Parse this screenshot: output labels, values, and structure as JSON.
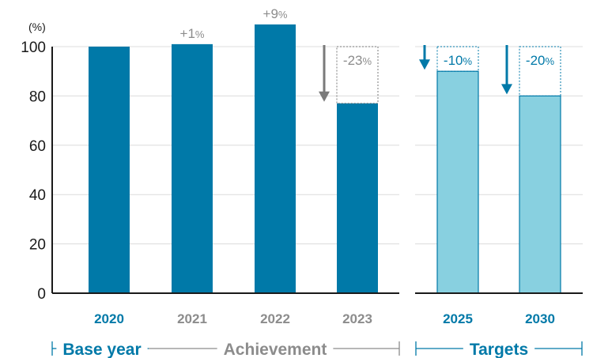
{
  "chart_data": {
    "type": "bar",
    "unit_label": "(%)",
    "y_ticks": [
      "0",
      "20",
      "40",
      "60",
      "80",
      "100"
    ],
    "ylim": [
      0,
      100
    ],
    "grid": true,
    "categories": [
      "2020",
      "2021",
      "2022",
      "2023",
      "2025",
      "2030"
    ],
    "values": [
      100,
      101,
      109,
      77,
      90,
      80
    ],
    "annotations": [
      {
        "category": "2021",
        "text": "+1",
        "unit": "%"
      },
      {
        "category": "2022",
        "text": "+9",
        "unit": "%"
      },
      {
        "category": "2023",
        "text": "-23",
        "unit": "%"
      },
      {
        "category": "2025",
        "text": "-10",
        "unit": "%"
      },
      {
        "category": "2030",
        "text": "-20",
        "unit": "%"
      }
    ],
    "groups": [
      {
        "label": "Base year",
        "categories": [
          "2020"
        ]
      },
      {
        "label": "Achievement",
        "categories": [
          "2021",
          "2022",
          "2023"
        ]
      },
      {
        "label": "Targets",
        "categories": [
          "2025",
          "2030"
        ]
      }
    ]
  },
  "colors": {
    "achievement_bar": "#0079a8",
    "target_bar": "#88d0e0",
    "label_blue": "#0079a8",
    "label_gray": "#8c8c8c",
    "arrow_gray": "#7a7a7a",
    "grid": "#dcdcdc",
    "axis": "#1a1a1a"
  }
}
